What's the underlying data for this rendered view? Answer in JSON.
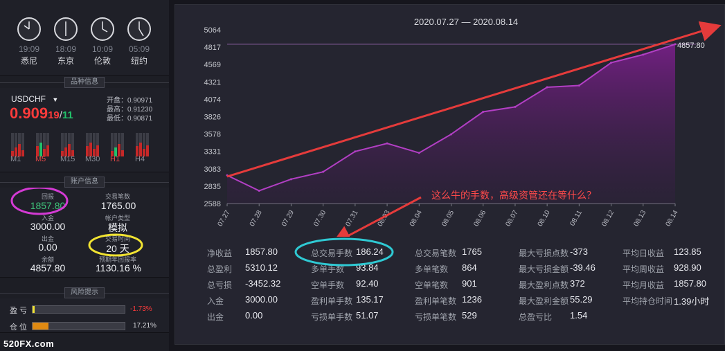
{
  "clocks": [
    {
      "time": "19:09",
      "city": "悉尼"
    },
    {
      "time": "18:09",
      "city": "东京"
    },
    {
      "time": "10:09",
      "city": "伦敦"
    },
    {
      "time": "05:09",
      "city": "纽约"
    }
  ],
  "symbol_section": {
    "title": "品种信息",
    "symbol": "USDCHF",
    "price_main": "0.909",
    "price_sub1": "19",
    "price_sep": "/",
    "price_sub2": "11",
    "open": "开盘：0.90971",
    "high": "最高：0.91230",
    "low": "最低：0.90871",
    "timeframes": [
      "M1",
      "M5",
      "M15",
      "M30",
      "H1",
      "H4"
    ],
    "active_timeframes": [
      "M5",
      "H1"
    ]
  },
  "account": {
    "title": "账户信息",
    "return_label": "回报",
    "return_value": "1857.80",
    "trades_label": "交易笔数",
    "trades_value": "1765.00",
    "deposit_label": "入金",
    "deposit_value": "3000.00",
    "account_type_label": "帐户类型",
    "account_type_value": "模拟",
    "withdraw_label": "出金",
    "withdraw_value": "0.00",
    "days_label": "交易时间",
    "days_value": "20 天",
    "balance_label": "余额",
    "balance_value": "4857.80",
    "annual_label": "预期年回报率",
    "annual_value": "1130.16 %"
  },
  "risk": {
    "title": "风险提示",
    "pl_label": "盈 亏",
    "pl_value": "-1.73%",
    "pl_fill": 0.02,
    "position_label": "仓 位",
    "position_value": "17.21%",
    "position_fill": 0.1721
  },
  "chart_data": {
    "type": "area",
    "title": "2020.07.27 — 2020.08.14",
    "x": [
      "07.27",
      "07.28",
      "07.29",
      "07.30",
      "07.31",
      "08.03",
      "08.04",
      "08.05",
      "08.06",
      "08.07",
      "08.10",
      "08.11",
      "08.12",
      "08.13",
      "08.14"
    ],
    "y": [
      2990,
      2770,
      2935,
      3040,
      3330,
      3445,
      3310,
      3575,
      3895,
      3965,
      4245,
      4270,
      4595,
      4710,
      4857.8
    ],
    "ylim": [
      2588,
      5064
    ],
    "yticks": [
      "5064",
      "4817",
      "4569",
      "4321",
      "4074",
      "3826",
      "3578",
      "3331",
      "3083",
      "2835",
      "2588"
    ],
    "last_label": "4857.80",
    "ref_line": 4857.8
  },
  "annotation": {
    "text": "这么牛的手数，高级资管还在等什么？"
  },
  "stats": [
    [
      {
        "label": "净收益",
        "value": "1857.80"
      },
      {
        "label": "总盈利",
        "value": "5310.12"
      },
      {
        "label": "总亏损",
        "value": "-3452.32"
      },
      {
        "label": "入金",
        "value": "3000.00"
      },
      {
        "label": "出金",
        "value": "0.00"
      }
    ],
    [
      {
        "label": "总交易手数",
        "value": "186.24"
      },
      {
        "label": "多单手数",
        "value": "93.84"
      },
      {
        "label": "空单手数",
        "value": "92.40"
      },
      {
        "label": "盈利单手数",
        "value": "135.17"
      },
      {
        "label": "亏损单手数",
        "value": "51.07"
      }
    ],
    [
      {
        "label": "总交易笔数",
        "value": "1765"
      },
      {
        "label": "多单笔数",
        "value": "864"
      },
      {
        "label": "空单笔数",
        "value": "901"
      },
      {
        "label": "盈利单笔数",
        "value": "1236"
      },
      {
        "label": "亏损单笔数",
        "value": "529"
      }
    ],
    [
      {
        "label": "最大亏损点数",
        "value": "-373"
      },
      {
        "label": "最大亏损金额",
        "value": "-39.46"
      },
      {
        "label": "最大盈利点数",
        "value": "372"
      },
      {
        "label": "最大盈利金额",
        "value": "55.29"
      },
      {
        "label": "总盈亏比",
        "value": "1.54"
      }
    ],
    [
      {
        "label": "平均日收益",
        "value": "123.85"
      },
      {
        "label": "平均周收益",
        "value": "928.90"
      },
      {
        "label": "平均月收益",
        "value": "1857.80"
      },
      {
        "label": "平均持仓时间",
        "value": "1.39小时"
      }
    ]
  ],
  "watermark": "520FX.com",
  "colors": {
    "accent_purple": "#b23fc4",
    "arrow_red": "#e53b3b",
    "price_red": "#ff3b3b",
    "price_green": "#22c06a",
    "circle_magenta": "#d43ad4",
    "circle_yellow": "#f1e332",
    "circle_cyan": "#2fc9d3"
  }
}
